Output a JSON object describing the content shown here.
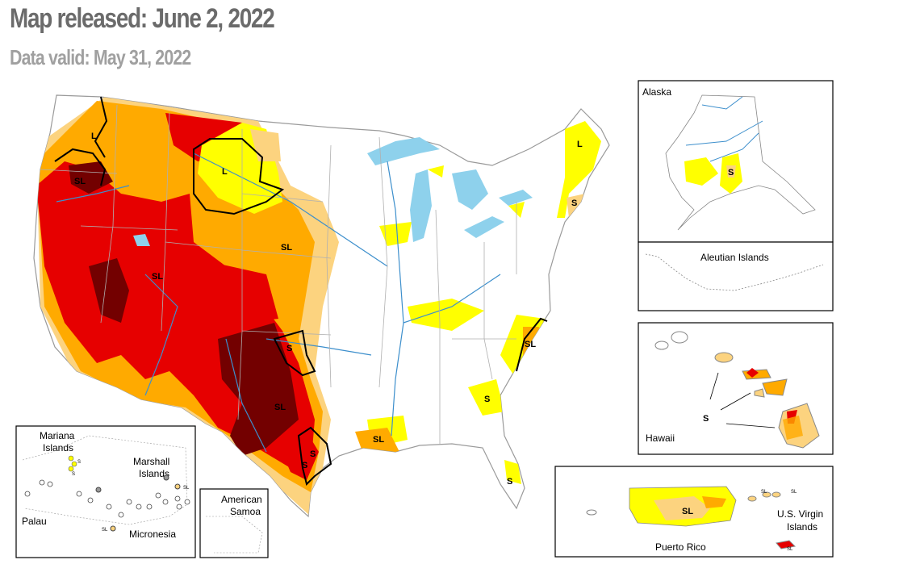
{
  "header": {
    "title": "Map released: June 2, 2022",
    "subtitle": "Data valid: May 31, 2022"
  },
  "colors": {
    "d0": "#ffff00",
    "d1": "#fcd37f",
    "d2": "#ffaa00",
    "d3": "#e60000",
    "d4": "#730000",
    "water": "#8ed1ec",
    "rivers": "#3d8fcc",
    "borders": "#b0b0b0",
    "impact_lines": "#000000"
  },
  "impact_labels": {
    "lower48": [
      "L",
      "SL",
      "L",
      "SL",
      "SL",
      "SL",
      "S",
      "S",
      "SL",
      "S",
      "SL",
      "S",
      "L",
      "S",
      "S"
    ],
    "alaska": "S",
    "hawaii": "S",
    "puerto_rico": "SL",
    "virgin_islands": [
      "SL",
      "SL",
      "SL"
    ],
    "pacific": [
      "S",
      "S",
      "SL",
      "SL"
    ]
  },
  "insets": {
    "alaska": "Alaska",
    "aleutian": "Aleutian Islands",
    "hawaii": "Hawaii",
    "puerto_rico": "Puerto Rico",
    "virgin_islands": [
      "U.S. Virgin",
      "Islands"
    ],
    "american_samoa": [
      "American",
      "Samoa"
    ],
    "mariana": [
      "Mariana",
      "Islands"
    ],
    "marshall": [
      "Marshall",
      "Islands"
    ],
    "palau": "Palau",
    "micronesia": "Micronesia"
  }
}
